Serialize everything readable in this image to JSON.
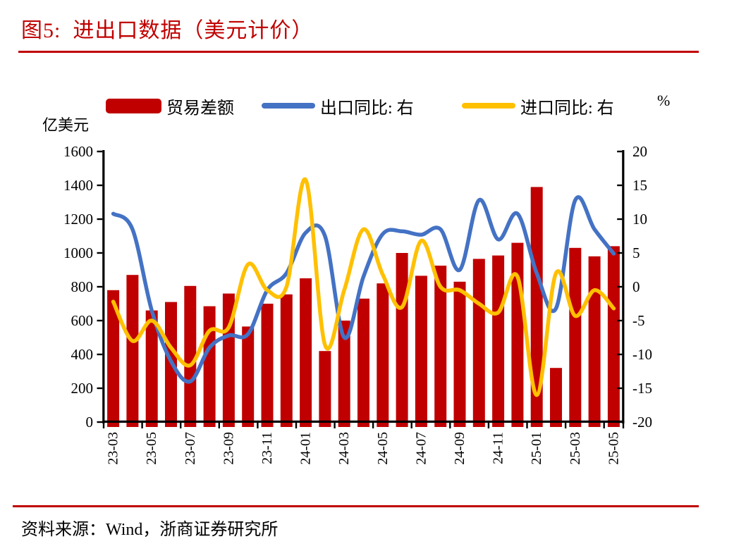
{
  "title": "图5:  进出口数据（美元计价）",
  "source": "资料来源：Wind，浙商证券研究所",
  "accent_color": "#C00000",
  "legend": [
    {
      "label": "贸易差额",
      "type": "bar",
      "color": "#C00000"
    },
    {
      "label": "出口同比: 右",
      "type": "line",
      "color": "#4472C4"
    },
    {
      "label": "进口同比: 右",
      "type": "line",
      "color": "#FFC000"
    }
  ],
  "left_axis": {
    "unit": "亿美元",
    "ticks": [
      "1600",
      "1400",
      "1200",
      "1000",
      "800",
      "600",
      "400",
      "200",
      "0"
    ]
  },
  "right_axis": {
    "unit": "%",
    "ticks": [
      "20",
      "15",
      "10",
      "5",
      "0",
      "-5",
      "-10",
      "-15",
      "-20"
    ]
  },
  "chart_data": {
    "type": "combo",
    "title": "进出口数据（美元计价）",
    "categories": [
      "23-03",
      "23-04",
      "23-05",
      "23-06",
      "23-07",
      "23-08",
      "23-09",
      "23-10",
      "23-11",
      "23-12",
      "24-01",
      "24-02",
      "24-03",
      "24-04",
      "24-05",
      "24-06",
      "24-07",
      "24-08",
      "24-09",
      "24-10",
      "24-11",
      "24-12",
      "25-01",
      "25-02",
      "25-03",
      "25-04",
      "25-05"
    ],
    "x_tick_labels": [
      "23-03",
      "23-05",
      "23-07",
      "23-09",
      "23-11",
      "24-01",
      "24-03",
      "24-05",
      "24-07",
      "24-09",
      "24-11",
      "25-01",
      "25-03",
      "25-05"
    ],
    "left_axis_label": "亿美元",
    "right_axis_label": "%",
    "left_range": [
      0,
      1600
    ],
    "right_range": [
      -20,
      20
    ],
    "grid": false,
    "legend_position": "top",
    "series": [
      {
        "name": "贸易差额",
        "type": "bar",
        "axis": "left",
        "color": "#C00000",
        "values": [
          780,
          870,
          660,
          710,
          805,
          685,
          760,
          565,
          700,
          755,
          850,
          420,
          600,
          730,
          820,
          1000,
          865,
          925,
          830,
          965,
          985,
          1060,
          1390,
          320,
          1030,
          980,
          1040
        ]
      },
      {
        "name": "出口同比: 右",
        "type": "line",
        "axis": "right",
        "color": "#4472C4",
        "values": [
          10.8,
          8.5,
          -3.5,
          -11.0,
          -14.0,
          -9.0,
          -7.2,
          -7.0,
          -0.5,
          2.0,
          8.0,
          7.5,
          -7.5,
          1.5,
          7.8,
          8.2,
          7.7,
          8.5,
          2.5,
          12.8,
          7.0,
          10.8,
          2.0,
          -3.2,
          12.8,
          8.5,
          4.9
        ]
      },
      {
        "name": "进口同比: 右",
        "type": "line",
        "axis": "right",
        "color": "#FFC000",
        "values": [
          -2.2,
          -8.0,
          -5.0,
          -9.0,
          -11.6,
          -6.5,
          -6.0,
          3.3,
          -0.5,
          0.0,
          15.8,
          -8.6,
          -0.5,
          8.5,
          1.8,
          -3.0,
          6.8,
          0.0,
          -0.5,
          -2.5,
          -3.8,
          1.5,
          -16.0,
          2.0,
          -4.3,
          -0.5,
          -3.2
        ]
      }
    ]
  }
}
